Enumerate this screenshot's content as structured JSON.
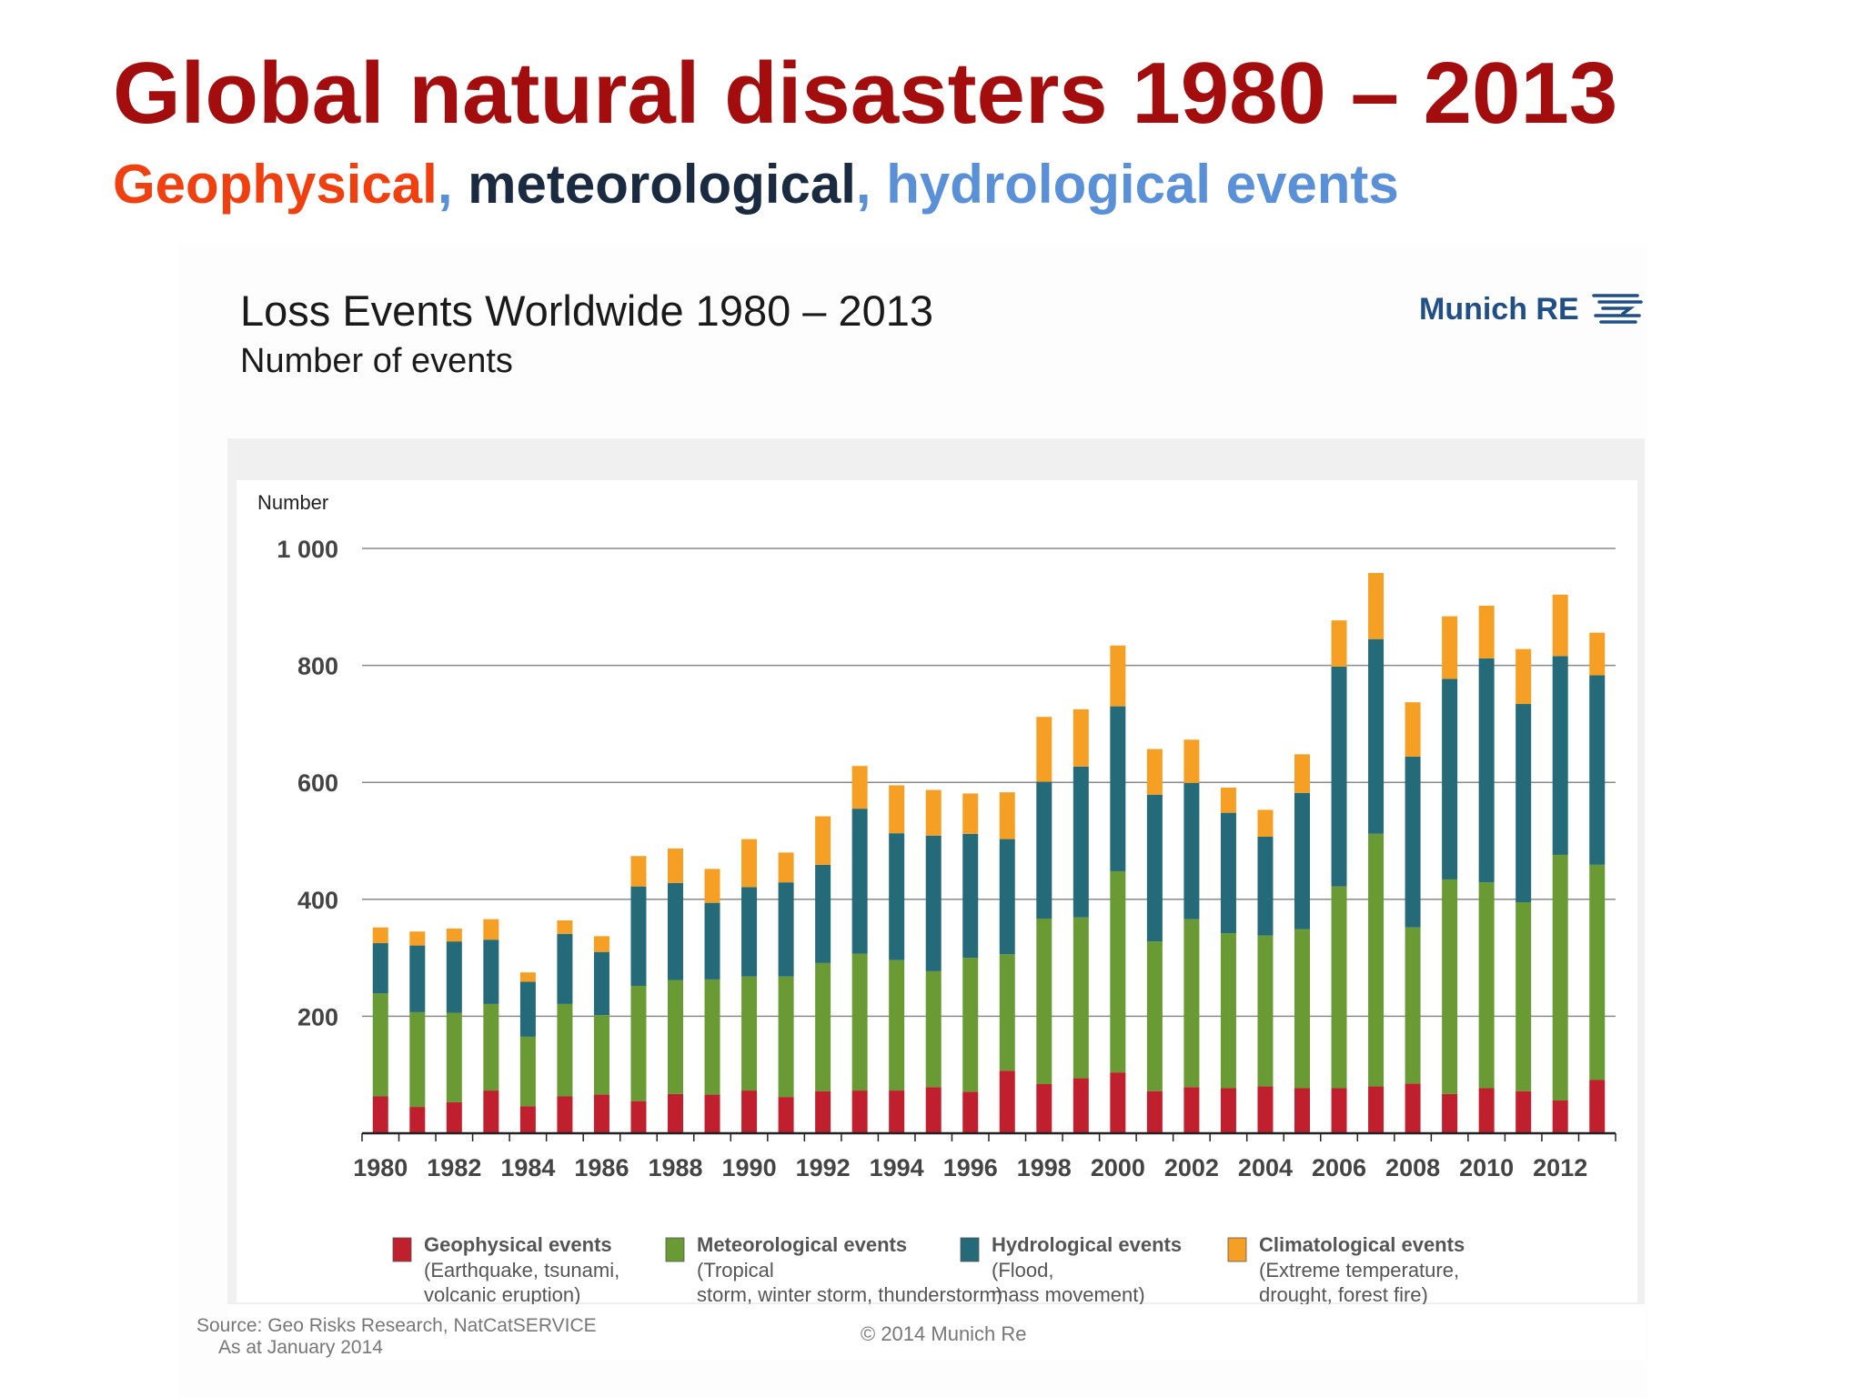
{
  "slide": {
    "title": "Global natural disasters 1980 – 2013",
    "subtitle_geo": "Geophysical",
    "subtitle_sep1": ",",
    "subtitle_met": " meteorological",
    "subtitle_sep2": ",",
    "subtitle_hyd": " hydrological events"
  },
  "brand": {
    "name": "Munich RE",
    "color": "#1f4f86"
  },
  "footer": {
    "source_line1": "Source: Geo Risks Research, NatCatSERVICE",
    "source_line2": "As at January 2014",
    "copyright": "© 2014 Munich Re"
  },
  "colors": {
    "geophysical": "#c0202d",
    "meteorological": "#6a9a34",
    "hydrological": "#256a78",
    "climatological": "#f5a024"
  },
  "chart_data": {
    "type": "bar",
    "stacked": true,
    "title": "Loss Events Worldwide 1980 – 2013",
    "subtitle": "Number of events",
    "ylabel": "Number",
    "ylim": [
      0,
      1000
    ],
    "yticks": [
      200,
      400,
      600,
      800,
      1000
    ],
    "ytick_labels": [
      "200",
      "400",
      "600",
      "800",
      "1 000"
    ],
    "grid": true,
    "legend_position": "bottom",
    "categories": [
      "1980",
      "1981",
      "1982",
      "1983",
      "1984",
      "1985",
      "1986",
      "1987",
      "1988",
      "1989",
      "1990",
      "1991",
      "1992",
      "1993",
      "1994",
      "1995",
      "1996",
      "1997",
      "1998",
      "1999",
      "2000",
      "2001",
      "2002",
      "2003",
      "2004",
      "2005",
      "2006",
      "2007",
      "2008",
      "2009",
      "2010",
      "2011",
      "2012",
      "2013"
    ],
    "xtick_labels": [
      "1980",
      "1982",
      "1984",
      "1986",
      "1988",
      "1990",
      "1992",
      "1994",
      "1996",
      "1998",
      "2000",
      "2002",
      "2004",
      "2006",
      "2008",
      "2010",
      "2012"
    ],
    "series": [
      {
        "name": "Geophysical events",
        "description": "(Earthquake, tsunami, volcanic eruption)",
        "color": "#c0202d",
        "values": [
          63,
          45,
          53,
          73,
          46,
          63,
          66,
          55,
          67,
          66,
          73,
          62,
          72,
          73,
          73,
          79,
          71,
          107,
          84,
          94,
          104,
          72,
          79,
          77,
          80,
          77,
          77,
          80,
          85,
          67,
          77,
          72,
          56,
          91
        ]
      },
      {
        "name": "Meteorological events",
        "description": "(Tropical storm, winter storm, thunderstorm)",
        "color": "#6a9a34",
        "values": [
          176,
          162,
          153,
          148,
          119,
          158,
          136,
          197,
          195,
          197,
          195,
          206,
          219,
          234,
          223,
          198,
          229,
          199,
          283,
          275,
          344,
          256,
          287,
          265,
          258,
          272,
          345,
          432,
          267,
          367,
          352,
          323,
          420,
          368
        ]
      },
      {
        "name": "Hydrological events",
        "description": "(Flood, mass movement)",
        "color": "#256a78",
        "values": [
          86,
          114,
          122,
          110,
          94,
          120,
          108,
          170,
          166,
          131,
          153,
          161,
          168,
          248,
          217,
          232,
          212,
          197,
          234,
          258,
          282,
          251,
          233,
          206,
          169,
          233,
          376,
          333,
          292,
          343,
          383,
          339,
          340,
          324
        ]
      },
      {
        "name": "Climatological events",
        "description": "(Extreme temperature, drought, forest fire)",
        "color": "#f5a024",
        "values": [
          27,
          24,
          22,
          35,
          16,
          23,
          27,
          52,
          59,
          58,
          82,
          51,
          83,
          73,
          82,
          78,
          69,
          80,
          111,
          98,
          104,
          78,
          74,
          43,
          46,
          66,
          79,
          113,
          93,
          107,
          90,
          94,
          105,
          73
        ]
      }
    ]
  }
}
